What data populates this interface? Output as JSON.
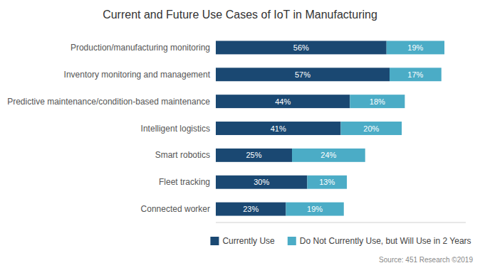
{
  "chart_data": {
    "type": "bar",
    "orientation": "horizontal",
    "stacked": true,
    "title": "Current and Future Use Cases of IoT in Manufacturing",
    "categories": [
      "Production/manufacturing monitoring",
      "Inventory monitoring and management",
      "Predictive maintenance/condition-based maintenance",
      "Intelligent logistics",
      "Smart robotics",
      "Fleet tracking",
      "Connected worker"
    ],
    "series": [
      {
        "name": "Currently Use",
        "color": "#1a4872",
        "values": [
          56,
          57,
          44,
          41,
          25,
          30,
          23
        ],
        "value_labels": [
          "56%",
          "57%",
          "44%",
          "41%",
          "25%",
          "30%",
          "23%"
        ]
      },
      {
        "name": "Do Not Currently Use, but Will Use in 2 Years",
        "color": "#4bacc6",
        "values": [
          19,
          17,
          18,
          20,
          24,
          13,
          19
        ],
        "value_labels": [
          "19%",
          "17%",
          "18%",
          "20%",
          "24%",
          "13%",
          "19%"
        ]
      }
    ],
    "xlim": [
      0,
      82
    ],
    "tick_labels": "y",
    "data_labels": true,
    "grid": false,
    "legend": "bottom",
    "annotations": [
      "Source: 451 Research ©2019"
    ]
  }
}
